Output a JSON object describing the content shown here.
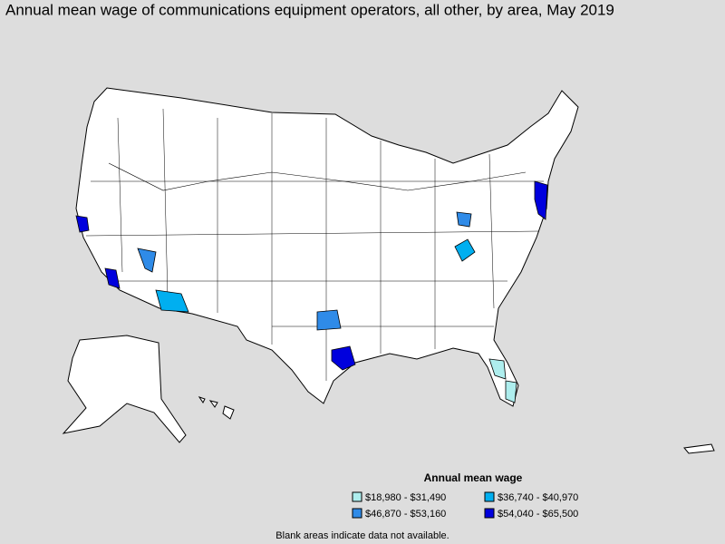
{
  "title": "Annual mean wage of communications equipment operators, all other, by area, May 2019",
  "legend": {
    "title": "Annual mean wage",
    "items": [
      {
        "label": "$18,980 - $31,490",
        "color": "#aeeeee"
      },
      {
        "label": "$36,740 - $40,970",
        "color": "#00aff0"
      },
      {
        "label": "$46,870 - $53,160",
        "color": "#2f8be8"
      },
      {
        "label": "$54,040 - $65,500",
        "color": "#0000dd"
      }
    ]
  },
  "footnote": "Blank areas indicate data not available."
}
